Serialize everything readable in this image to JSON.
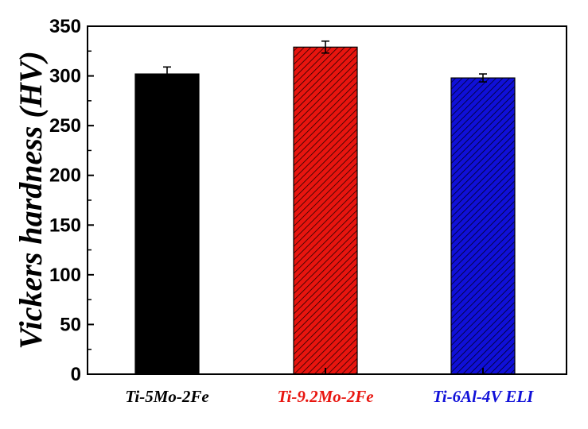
{
  "chart_data": {
    "type": "bar",
    "title": "",
    "xlabel": "",
    "ylabel": "Vickers hardness (HV)",
    "ylim": [
      0,
      350
    ],
    "yticks": [
      0,
      50,
      100,
      150,
      200,
      250,
      300,
      350
    ],
    "grid": false,
    "categories": [
      "Ti-5Mo-2Fe",
      "Ti-9.2Mo-2Fe",
      "Ti-6Al-4V ELI"
    ],
    "values": [
      302,
      329,
      298
    ],
    "errors": [
      7,
      6,
      4
    ],
    "bar_colors": [
      "#000000",
      "#e8150f",
      "#1010d8"
    ],
    "label_colors": [
      "#000000",
      "#e8150f",
      "#1010d8"
    ],
    "bar_fill": [
      "solid",
      "hatched",
      "hatched"
    ]
  }
}
